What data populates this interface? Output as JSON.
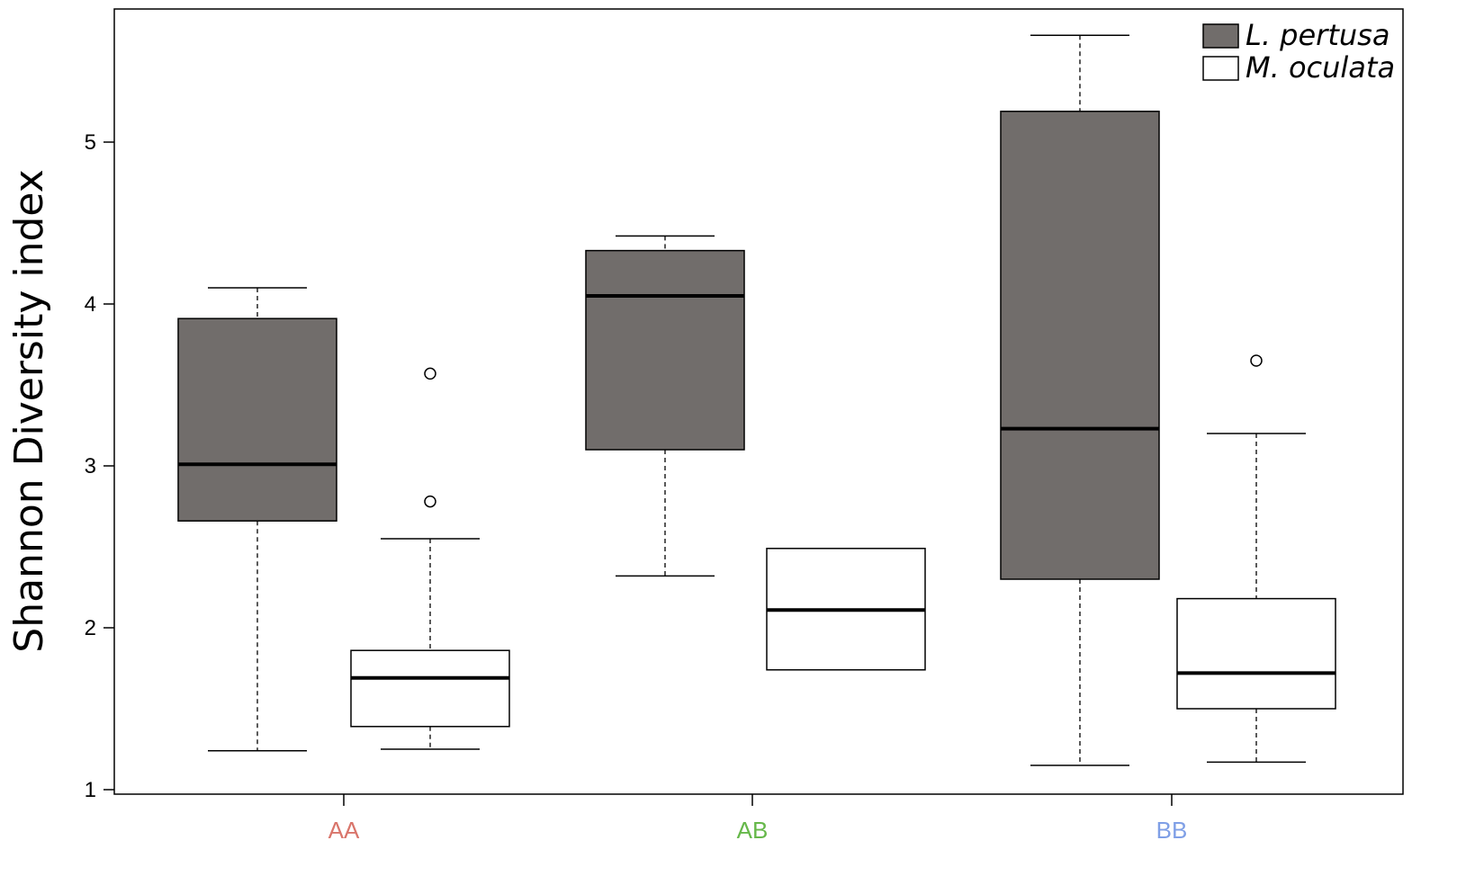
{
  "chart_data": {
    "type": "boxplot",
    "ylabel": "Shannon Diversity index",
    "xlabel": "",
    "ylim": [
      0.98,
      5.85
    ],
    "yticks": [
      1,
      2,
      3,
      4,
      5
    ],
    "ytick_labels": [
      "1",
      "2",
      "3",
      "4",
      "5"
    ],
    "categories": [
      "AA",
      "AB",
      "BB"
    ],
    "category_colors": [
      "#d9756b",
      "#66b84a",
      "#7f9fe6"
    ],
    "legend_position": "top-right",
    "series": [
      {
        "name": "L. pertusa",
        "color": "#716d6b",
        "boxes": [
          {
            "category": "AA",
            "whisker_low": 1.24,
            "q1": 2.66,
            "median": 3.01,
            "q3": 3.91,
            "whisker_high": 4.1,
            "outliers": []
          },
          {
            "category": "AB",
            "whisker_low": 2.32,
            "q1": 3.1,
            "median": 4.05,
            "q3": 4.33,
            "whisker_high": 4.42,
            "outliers": []
          },
          {
            "category": "BB",
            "whisker_low": 1.15,
            "q1": 2.3,
            "median": 3.23,
            "q3": 5.19,
            "whisker_high": 5.66,
            "outliers": []
          }
        ]
      },
      {
        "name": "M. oculata",
        "color": "#ffffff",
        "boxes": [
          {
            "category": "AA",
            "whisker_low": 1.25,
            "q1": 1.39,
            "median": 1.69,
            "q3": 1.86,
            "whisker_high": 2.55,
            "outliers": [
              2.78,
              3.57
            ]
          },
          {
            "category": "AB",
            "whisker_low": 1.74,
            "q1": 1.74,
            "median": 2.11,
            "q3": 2.49,
            "whisker_high": 2.49,
            "outliers": []
          },
          {
            "category": "BB",
            "whisker_low": 1.17,
            "q1": 1.5,
            "median": 1.72,
            "q3": 2.18,
            "whisker_high": 3.2,
            "outliers": [
              3.65
            ]
          }
        ]
      }
    ]
  }
}
